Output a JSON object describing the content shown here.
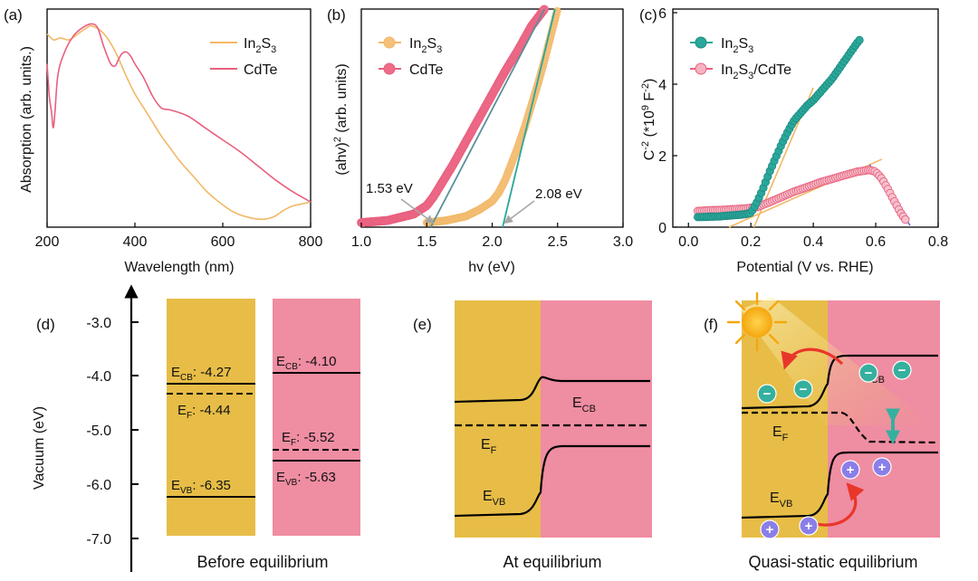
{
  "colors": {
    "in2s3": "#f2b866",
    "cdte": "#e8607e",
    "in2s3_dot": "#f5c07a",
    "cdte_dot": "#ee6b8a",
    "teal": "#2aa79b",
    "gold_band": "#e7bd47",
    "pink_band": "#ef8da2",
    "electron": "#35b09e",
    "hole": "#8a7ee8",
    "arrow_red": "#e9362a",
    "sun": "#f5a60f",
    "fit_blue": "#5b6fe0",
    "gray": "#a6a6a6"
  },
  "chart_data": [
    {
      "panel": "(a)",
      "type": "line",
      "xlabel": "Wavelength (nm)",
      "ylabel": "Absorption (arb. units.)",
      "xlim": [
        200,
        800
      ],
      "ylim": [
        0,
        1
      ],
      "xticks": [
        "200",
        "400",
        "600",
        "800"
      ],
      "legend": [
        "In2S3",
        "CdTe"
      ],
      "legend_placement": "top-right",
      "series": [
        {
          "name": "In2S3",
          "x": [
            200,
            215,
            230,
            250,
            270,
            290,
            300,
            320,
            340,
            360,
            380,
            400,
            420,
            440,
            460,
            480,
            500,
            520,
            540,
            560,
            580,
            600,
            620,
            640,
            660,
            680,
            700,
            720,
            740,
            760,
            780,
            800
          ],
          "y": [
            0.93,
            0.9,
            0.91,
            0.9,
            0.93,
            0.96,
            0.97,
            0.95,
            0.9,
            0.82,
            0.72,
            0.63,
            0.56,
            0.49,
            0.42,
            0.36,
            0.3,
            0.25,
            0.2,
            0.15,
            0.11,
            0.075,
            0.045,
            0.025,
            0.012,
            0.004,
            0.005,
            0.02,
            0.05,
            0.07,
            0.08,
            0.09
          ]
        },
        {
          "name": "CdTe",
          "x": [
            200,
            205,
            210,
            214,
            218,
            225,
            240,
            260,
            280,
            300,
            315,
            330,
            345,
            355,
            362,
            370,
            380,
            390,
            400,
            420,
            440,
            460,
            480,
            520,
            560,
            600,
            640,
            680,
            720,
            760,
            800
          ],
          "y": [
            0.78,
            0.62,
            0.54,
            0.46,
            0.54,
            0.73,
            0.84,
            0.92,
            0.96,
            0.98,
            0.96,
            0.86,
            0.78,
            0.77,
            0.8,
            0.83,
            0.84,
            0.82,
            0.78,
            0.71,
            0.62,
            0.56,
            0.55,
            0.52,
            0.46,
            0.4,
            0.34,
            0.27,
            0.2,
            0.14,
            0.09
          ]
        }
      ]
    },
    {
      "panel": "(b)",
      "type": "scatter",
      "xlabel": "hv (eV)",
      "ylabel": "(ahv)2 (arb. units)",
      "xlim": [
        1.0,
        3.0
      ],
      "ylim": [
        0,
        1
      ],
      "xticks": [
        "1.0",
        "1.5",
        "2.0",
        "2.5",
        "3.0"
      ],
      "legend": [
        "In2S3",
        "CdTe"
      ],
      "legend_placement": "top-left",
      "annotations": [
        "1.53 eV",
        "2.08 eV"
      ],
      "series": [
        {
          "name": "In2S3",
          "x": [
            1.5,
            1.65,
            1.8,
            1.9,
            2.0,
            2.05,
            2.1,
            2.15,
            2.2,
            2.25,
            2.3,
            2.35,
            2.4,
            2.45,
            2.5
          ],
          "y": [
            0.0,
            0.01,
            0.03,
            0.06,
            0.1,
            0.14,
            0.2,
            0.28,
            0.36,
            0.45,
            0.55,
            0.65,
            0.76,
            0.88,
            1.0
          ]
        },
        {
          "name": "CdTe",
          "x": [
            1.0,
            1.2,
            1.4,
            1.5,
            1.55,
            1.6,
            1.7,
            1.8,
            1.9,
            2.0,
            2.1,
            2.2,
            2.3,
            2.4
          ],
          "y": [
            0.0,
            0.01,
            0.04,
            0.08,
            0.12,
            0.17,
            0.27,
            0.38,
            0.49,
            0.6,
            0.71,
            0.81,
            0.92,
            1.0
          ]
        }
      ],
      "fits": [
        {
          "name": "In2S3",
          "x": [
            2.08,
            2.48
          ],
          "y": [
            0.0,
            1.0
          ]
        },
        {
          "name": "CdTe",
          "x": [
            1.53,
            2.4
          ],
          "y": [
            0.0,
            1.0
          ]
        }
      ]
    },
    {
      "panel": "(c)",
      "type": "scatter",
      "xlabel": "Potential (V vs. RHE)",
      "ylabel": "C-2 (*109 F-2)",
      "xlim": [
        -0.05,
        0.8
      ],
      "ylim": [
        0,
        6
      ],
      "xticks": [
        "0.0",
        "0.2",
        "0.4",
        "0.6",
        "0.8"
      ],
      "yticks": [
        "0",
        "2",
        "4",
        "6"
      ],
      "legend": [
        "In2S3",
        "In2S3/CdTe"
      ],
      "legend_placement": "top-left",
      "series": [
        {
          "name": "In2S3",
          "x": [
            0.03,
            0.06,
            0.1,
            0.14,
            0.18,
            0.2,
            0.22,
            0.24,
            0.26,
            0.28,
            0.3,
            0.32,
            0.34,
            0.36,
            0.38,
            0.4,
            0.42,
            0.44,
            0.46,
            0.48,
            0.5,
            0.52,
            0.54,
            0.55
          ],
          "y": [
            0.28,
            0.29,
            0.3,
            0.33,
            0.36,
            0.4,
            0.7,
            1.1,
            1.55,
            1.95,
            2.35,
            2.7,
            3.0,
            3.2,
            3.4,
            3.55,
            3.75,
            3.95,
            4.15,
            4.4,
            4.65,
            4.9,
            5.15,
            5.25
          ]
        },
        {
          "name": "In2S3/CdTe",
          "x": [
            0.03,
            0.06,
            0.1,
            0.14,
            0.18,
            0.22,
            0.26,
            0.3,
            0.34,
            0.38,
            0.42,
            0.46,
            0.5,
            0.54,
            0.58,
            0.6,
            0.62,
            0.64,
            0.66,
            0.68,
            0.7
          ],
          "y": [
            0.45,
            0.47,
            0.48,
            0.5,
            0.52,
            0.56,
            0.7,
            0.85,
            1.0,
            1.12,
            1.25,
            1.35,
            1.45,
            1.55,
            1.6,
            1.55,
            1.35,
            1.05,
            0.72,
            0.4,
            0.15
          ]
        }
      ],
      "fits": [
        {
          "name": "In2S3",
          "x": [
            0.21,
            0.4
          ],
          "y": [
            0.0,
            3.9
          ]
        },
        {
          "name": "In2S3/CdTe",
          "x": [
            0.13,
            0.62
          ],
          "y": [
            0.0,
            1.9
          ]
        },
        {
          "name": "In2S3/CdTe-descent",
          "x": [
            0.58,
            0.71
          ],
          "y": [
            1.75,
            0.05
          ]
        }
      ]
    }
  ],
  "panels": {
    "a": {
      "label": "(a)",
      "legend1": "In",
      "legend1_sub": "2",
      "legend1_tail": "S",
      "legend1_sub2": "3",
      "legend2": "CdTe"
    },
    "b": {
      "label": "(b)",
      "legend2": "CdTe",
      "ann1": "1.53 eV",
      "ann2": "2.08 eV"
    },
    "c": {
      "label": "(c)",
      "legend2_tail": "/CdTe"
    },
    "d": {
      "label": "(d)",
      "axis_label": "Vacuum (eV)",
      "axis_ticks": [
        "-3.0",
        "-4.0",
        "-5.0",
        "-6.0",
        "-7.0"
      ],
      "ecb_in2s3": ": -4.27",
      "ef_in2s3": ": -4.44",
      "evb_in2s3": ": -6.35",
      "ecb_cdte": ": -4.10",
      "ef_cdte": ": -5.52",
      "evb_cdte": ": -5.63",
      "caption": "Before equilibrium"
    },
    "e": {
      "label": "(e)",
      "caption": "At equilibrium"
    },
    "f": {
      "label": "(f)",
      "caption": "Quasi-static equilibrium"
    }
  },
  "symbols": {
    "e_main": "E",
    "sub_cb": "CB",
    "sub_vb": "VB",
    "sub_f": "F",
    "minus": "−",
    "plus": "+"
  }
}
